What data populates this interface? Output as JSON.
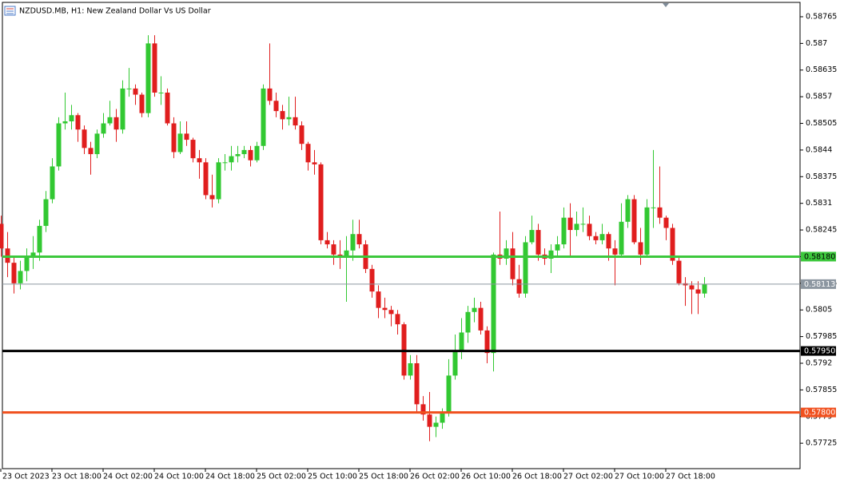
{
  "chart_data": {
    "type": "candlestick",
    "title": "NZDUSD.MB, H1:  New Zealand Dollar Vs US Dollar",
    "up_color": "#32c832",
    "down_color": "#e01e1e",
    "ylim": [
      0.57663,
      0.588
    ],
    "yticks": [
      0.58765,
      0.587,
      0.58635,
      0.5857,
      0.58505,
      0.5844,
      0.58375,
      0.5831,
      0.58245,
      0.5818,
      0.58115,
      0.5805,
      0.57985,
      0.5792,
      0.57855,
      0.5779,
      0.57725
    ],
    "xticks": [
      {
        "value": 0,
        "label": "23 Oct 2023"
      },
      {
        "value": 8,
        "label": "23 Oct 18:00"
      },
      {
        "value": 16,
        "label": "24 Oct 02:00"
      },
      {
        "value": 24,
        "label": "24 Oct 10:00"
      },
      {
        "value": 32,
        "label": "24 Oct 18:00"
      },
      {
        "value": 40,
        "label": "25 Oct 02:00"
      },
      {
        "value": 48,
        "label": "25 Oct 10:00"
      },
      {
        "value": 56,
        "label": "25 Oct 18:00"
      },
      {
        "value": 64,
        "label": "26 Oct 02:00"
      },
      {
        "value": 72,
        "label": "26 Oct 10:00"
      },
      {
        "value": 80,
        "label": "26 Oct 18:00"
      },
      {
        "value": 88,
        "label": "27 Oct 02:00"
      },
      {
        "value": 96,
        "label": "27 Oct 10:00"
      },
      {
        "value": 104,
        "label": "27 Oct 18:00"
      }
    ],
    "levels": [
      {
        "value": 0.5818,
        "label": "0.58180",
        "color": "#3cc83c"
      },
      {
        "value": 0.58113,
        "label": "0.58113",
        "color": "#8c96a0"
      },
      {
        "value": 0.5795,
        "label": "0.57950",
        "color": "#000000"
      },
      {
        "value": 0.578,
        "label": "0.57800",
        "color": "#f0501e"
      }
    ],
    "ohlc": [
      [
        0.5826,
        0.5828,
        0.5818,
        0.582
      ],
      [
        0.582,
        0.5824,
        0.5813,
        0.58165
      ],
      [
        0.58165,
        0.5818,
        0.5809,
        0.58115
      ],
      [
        0.58115,
        0.5817,
        0.581,
        0.58145
      ],
      [
        0.58145,
        0.582,
        0.5812,
        0.5818
      ],
      [
        0.5818,
        0.5823,
        0.5815,
        0.5819
      ],
      [
        0.5819,
        0.5827,
        0.5817,
        0.58255
      ],
      [
        0.58255,
        0.5834,
        0.5824,
        0.5832
      ],
      [
        0.5832,
        0.5842,
        0.5831,
        0.584
      ],
      [
        0.584,
        0.5852,
        0.5839,
        0.58505
      ],
      [
        0.58505,
        0.5858,
        0.5849,
        0.5851
      ],
      [
        0.5851,
        0.5855,
        0.5849,
        0.58525
      ],
      [
        0.58525,
        0.5853,
        0.5846,
        0.5849
      ],
      [
        0.5849,
        0.585,
        0.5843,
        0.58445
      ],
      [
        0.58445,
        0.5846,
        0.5838,
        0.5843
      ],
      [
        0.5843,
        0.5849,
        0.5842,
        0.5848
      ],
      [
        0.5848,
        0.5853,
        0.5847,
        0.58505
      ],
      [
        0.58505,
        0.5856,
        0.585,
        0.5852
      ],
      [
        0.5852,
        0.5854,
        0.5846,
        0.5849
      ],
      [
        0.5849,
        0.5861,
        0.5848,
        0.5859
      ],
      [
        0.5859,
        0.5864,
        0.5857,
        0.5859
      ],
      [
        0.5859,
        0.586,
        0.5855,
        0.58575
      ],
      [
        0.58575,
        0.5858,
        0.5852,
        0.5853
      ],
      [
        0.5853,
        0.5872,
        0.5852,
        0.587
      ],
      [
        0.587,
        0.5872,
        0.5857,
        0.5858
      ],
      [
        0.5858,
        0.5862,
        0.5855,
        0.5858
      ],
      [
        0.5858,
        0.5859,
        0.585,
        0.58505
      ],
      [
        0.58505,
        0.5852,
        0.5842,
        0.58435
      ],
      [
        0.58435,
        0.5851,
        0.5843,
        0.5848
      ],
      [
        0.5848,
        0.5851,
        0.5845,
        0.58465
      ],
      [
        0.58465,
        0.5847,
        0.5841,
        0.5842
      ],
      [
        0.5842,
        0.5844,
        0.5837,
        0.5841
      ],
      [
        0.5841,
        0.5842,
        0.5832,
        0.5833
      ],
      [
        0.5833,
        0.5838,
        0.583,
        0.5832
      ],
      [
        0.5832,
        0.5842,
        0.5831,
        0.5841
      ],
      [
        0.5841,
        0.5843,
        0.5839,
        0.5841
      ],
      [
        0.5841,
        0.5845,
        0.5839,
        0.58425
      ],
      [
        0.58425,
        0.5845,
        0.5841,
        0.5843
      ],
      [
        0.5843,
        0.5845,
        0.5842,
        0.5844
      ],
      [
        0.5844,
        0.5845,
        0.584,
        0.58415
      ],
      [
        0.58415,
        0.5846,
        0.5841,
        0.5845
      ],
      [
        0.5845,
        0.586,
        0.5844,
        0.5859
      ],
      [
        0.5859,
        0.587,
        0.5855,
        0.5856
      ],
      [
        0.5856,
        0.5858,
        0.5852,
        0.58535
      ],
      [
        0.58535,
        0.5855,
        0.5849,
        0.58515
      ],
      [
        0.58515,
        0.5857,
        0.585,
        0.5852
      ],
      [
        0.5852,
        0.5857,
        0.5849,
        0.585
      ],
      [
        0.585,
        0.5851,
        0.5844,
        0.58455
      ],
      [
        0.58455,
        0.5846,
        0.5839,
        0.5841
      ],
      [
        0.5841,
        0.5844,
        0.5838,
        0.58405
      ],
      [
        0.58405,
        0.5841,
        0.5821,
        0.5822
      ],
      [
        0.5822,
        0.5824,
        0.582,
        0.5821
      ],
      [
        0.5821,
        0.5822,
        0.5816,
        0.58185
      ],
      [
        0.58185,
        0.5822,
        0.5815,
        0.5818
      ],
      [
        0.5818,
        0.5823,
        0.5807,
        0.58195
      ],
      [
        0.58195,
        0.5827,
        0.5817,
        0.58235
      ],
      [
        0.58235,
        0.5827,
        0.582,
        0.5821
      ],
      [
        0.5821,
        0.5822,
        0.5814,
        0.5815
      ],
      [
        0.5815,
        0.5816,
        0.5808,
        0.58095
      ],
      [
        0.58095,
        0.5811,
        0.5803,
        0.58055
      ],
      [
        0.58055,
        0.5808,
        0.5803,
        0.5805
      ],
      [
        0.5805,
        0.5806,
        0.5801,
        0.5804
      ],
      [
        0.5804,
        0.5805,
        0.5799,
        0.58015
      ],
      [
        0.58015,
        0.5802,
        0.5788,
        0.5789
      ],
      [
        0.5789,
        0.5794,
        0.5788,
        0.5792
      ],
      [
        0.5792,
        0.5794,
        0.578,
        0.5782
      ],
      [
        0.5782,
        0.5784,
        0.5778,
        0.57795
      ],
      [
        0.57795,
        0.5785,
        0.5773,
        0.57765
      ],
      [
        0.57765,
        0.5779,
        0.5774,
        0.57775
      ],
      [
        0.57775,
        0.5781,
        0.5776,
        0.578
      ],
      [
        0.578,
        0.5793,
        0.5779,
        0.5789
      ],
      [
        0.5789,
        0.5799,
        0.5788,
        0.5795
      ],
      [
        0.5795,
        0.5803,
        0.5793,
        0.57995
      ],
      [
        0.57995,
        0.5806,
        0.5797,
        0.58045
      ],
      [
        0.58045,
        0.5808,
        0.5802,
        0.58055
      ],
      [
        0.58055,
        0.5807,
        0.5799,
        0.58
      ],
      [
        0.58,
        0.5801,
        0.5792,
        0.57945
      ],
      [
        0.57945,
        0.5819,
        0.579,
        0.58185
      ],
      [
        0.58185,
        0.5829,
        0.5816,
        0.58175
      ],
      [
        0.58175,
        0.5822,
        0.5816,
        0.582
      ],
      [
        0.582,
        0.5824,
        0.5811,
        0.58125
      ],
      [
        0.58125,
        0.5816,
        0.5808,
        0.5809
      ],
      [
        0.5809,
        0.5823,
        0.5808,
        0.58215
      ],
      [
        0.58215,
        0.5828,
        0.5821,
        0.58245
      ],
      [
        0.58245,
        0.5826,
        0.5817,
        0.58185
      ],
      [
        0.58185,
        0.582,
        0.5816,
        0.58175
      ],
      [
        0.58175,
        0.5821,
        0.5814,
        0.58195
      ],
      [
        0.58195,
        0.5823,
        0.5818,
        0.5821
      ],
      [
        0.5821,
        0.583,
        0.582,
        0.58275
      ],
      [
        0.58275,
        0.5831,
        0.5818,
        0.58245
      ],
      [
        0.58245,
        0.5829,
        0.5823,
        0.5826
      ],
      [
        0.5826,
        0.583,
        0.5824,
        0.5826
      ],
      [
        0.5826,
        0.5828,
        0.5822,
        0.5823
      ],
      [
        0.5823,
        0.5824,
        0.5821,
        0.5822
      ],
      [
        0.5822,
        0.5826,
        0.5821,
        0.58235
      ],
      [
        0.58235,
        0.5824,
        0.5817,
        0.582
      ],
      [
        0.582,
        0.5822,
        0.5811,
        0.58185
      ],
      [
        0.58185,
        0.5831,
        0.5818,
        0.58265
      ],
      [
        0.58265,
        0.5833,
        0.5825,
        0.5832
      ],
      [
        0.5832,
        0.5833,
        0.5821,
        0.58215
      ],
      [
        0.58215,
        0.5825,
        0.5816,
        0.58185
      ],
      [
        0.58185,
        0.5832,
        0.5818,
        0.583
      ],
      [
        0.583,
        0.5844,
        0.5825,
        0.583
      ],
      [
        0.583,
        0.584,
        0.5826,
        0.58275
      ],
      [
        0.58275,
        0.5828,
        0.5822,
        0.5825
      ],
      [
        0.5825,
        0.5826,
        0.5816,
        0.5817
      ],
      [
        0.5817,
        0.5818,
        0.5811,
        0.58115
      ],
      [
        0.58115,
        0.5813,
        0.5806,
        0.5811
      ],
      [
        0.5811,
        0.5812,
        0.5804,
        0.581
      ],
      [
        0.581,
        0.5812,
        0.5804,
        0.5809
      ],
      [
        0.5809,
        0.5813,
        0.5808,
        0.58113
      ]
    ]
  }
}
